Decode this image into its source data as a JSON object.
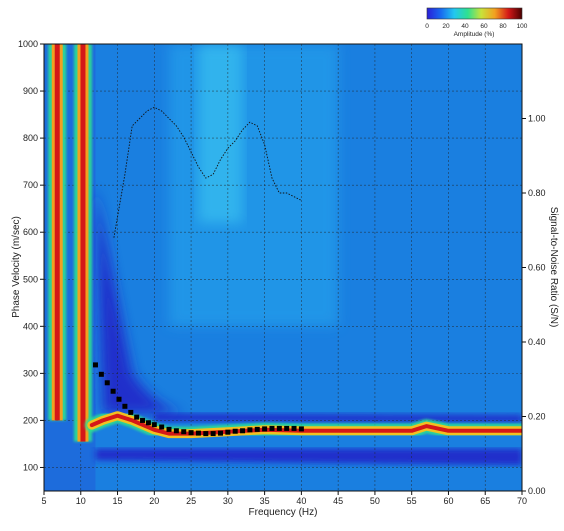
{
  "chart_data": {
    "type": "heatmap",
    "xlabel": "Frequency (Hz)",
    "ylabel": "Phase Velocity (m/sec)",
    "y2label": "Signal-to-Noise Ratio (S/N)",
    "xlim": [
      5,
      70
    ],
    "ylim": [
      50,
      1000
    ],
    "y2lim": [
      0,
      1.2
    ],
    "xticks": [
      "5",
      "10",
      "15",
      "20",
      "25",
      "30",
      "35",
      "40",
      "45",
      "50",
      "55",
      "60",
      "65",
      "70"
    ],
    "yticks": [
      "100",
      "200",
      "300",
      "400",
      "500",
      "600",
      "700",
      "800",
      "900",
      "1000"
    ],
    "y2ticks": [
      "0.00",
      "0.20",
      "0.40",
      "0.60",
      "0.80",
      "1.00"
    ],
    "grid": true,
    "colorbar": {
      "label": "Amplitude (%)",
      "ticks": [
        "0",
        "20",
        "40",
        "60",
        "80",
        "100"
      ],
      "colors": [
        "#2a1fd8",
        "#1868f0",
        "#22c7f0",
        "#2fe090",
        "#c8e23a",
        "#f2a020",
        "#d41818",
        "#4a0000"
      ],
      "placement": "top-right"
    },
    "fundamental_mode_ridge": {
      "x": [
        11.5,
        13,
        15,
        17,
        20,
        22,
        25,
        30,
        35,
        40,
        45,
        50,
        55,
        57,
        60,
        65,
        70
      ],
      "y": [
        190,
        200,
        210,
        200,
        180,
        172,
        172,
        176,
        180,
        178,
        178,
        178,
        178,
        188,
        178,
        178,
        178
      ]
    },
    "low_frequency_ridges": [
      {
        "x": 6.8,
        "y_from": 200,
        "y_to": 1000
      },
      {
        "x": 10.3,
        "y_from": 155,
        "y_to": 1000
      }
    ],
    "picked_dispersion_points": {
      "x": [
        12,
        12.8,
        13.6,
        14.4,
        15.2,
        16,
        16.8,
        17.6,
        18.4,
        19.2,
        20,
        21,
        22,
        23,
        24,
        25,
        26,
        27,
        28,
        29,
        30,
        31,
        32,
        33,
        34,
        35,
        36,
        37,
        38,
        39,
        40
      ],
      "y": [
        318,
        298,
        280,
        262,
        245,
        230,
        217,
        207,
        200,
        195,
        191,
        186,
        181,
        178,
        176,
        174,
        173,
        172,
        172,
        173,
        175,
        177,
        178,
        180,
        181,
        182,
        183,
        183,
        183,
        183,
        182
      ]
    },
    "snr_curve": {
      "x": [
        14.5,
        16,
        17,
        18,
        19,
        20,
        21,
        22,
        23,
        24,
        25,
        26,
        27,
        28,
        29,
        30,
        31,
        32,
        33,
        34,
        35,
        36,
        37,
        38,
        39,
        40
      ],
      "y": [
        0.68,
        0.85,
        0.98,
        1.0,
        1.02,
        1.03,
        1.02,
        1.0,
        0.98,
        0.95,
        0.91,
        0.87,
        0.84,
        0.85,
        0.89,
        0.92,
        0.94,
        0.97,
        0.99,
        0.98,
        0.93,
        0.84,
        0.8,
        0.8,
        0.79,
        0.78
      ]
    }
  }
}
